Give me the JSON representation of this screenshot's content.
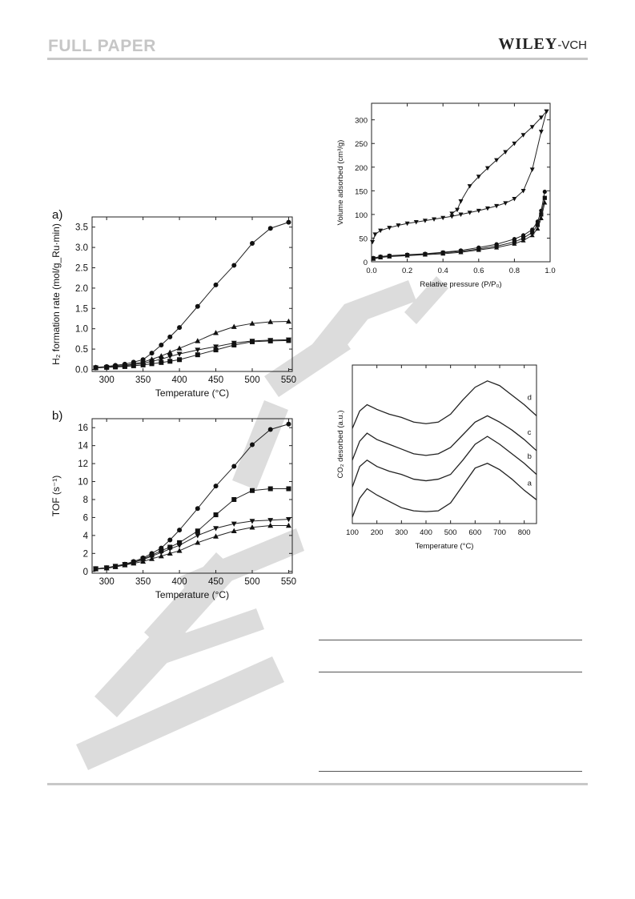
{
  "header": {
    "journal_section": "FULL PAPER",
    "publisher_main": "WILEY",
    "publisher_suffix": "-VCH"
  },
  "watermark": {
    "text": "Wiley-VCH"
  },
  "chart_data": [
    {
      "id": "h2rate",
      "type": "line",
      "panel_label": "a)",
      "xlabel": "Temperature (°C)",
      "ylabel": "H₂ formation rate (mol/g_Ru·min)",
      "xlim": [
        280,
        555
      ],
      "ylim": [
        -0.05,
        3.75
      ],
      "xticks": [
        300,
        350,
        400,
        450,
        500,
        550
      ],
      "yticks": [
        0.0,
        0.5,
        1.0,
        1.5,
        2.0,
        2.5,
        3.0,
        3.5
      ],
      "ytick_labels": [
        "0.0",
        "0.5",
        "1.0",
        "1.5",
        "2.0",
        "2.5",
        "3.0",
        "3.5"
      ],
      "series": [
        {
          "marker": "circle",
          "x": [
            285,
            300,
            312,
            325,
            337,
            350,
            362,
            375,
            387,
            400,
            425,
            450,
            475,
            500,
            525,
            550
          ],
          "y": [
            0.05,
            0.07,
            0.1,
            0.13,
            0.18,
            0.24,
            0.4,
            0.6,
            0.8,
            1.03,
            1.55,
            2.08,
            2.56,
            3.1,
            3.47,
            3.62
          ]
        },
        {
          "marker": "triangle-up",
          "x": [
            285,
            300,
            312,
            325,
            337,
            350,
            362,
            375,
            387,
            400,
            425,
            450,
            475,
            500,
            525,
            550
          ],
          "y": [
            0.05,
            0.06,
            0.08,
            0.1,
            0.14,
            0.18,
            0.25,
            0.33,
            0.42,
            0.52,
            0.7,
            0.9,
            1.05,
            1.13,
            1.17,
            1.18
          ]
        },
        {
          "marker": "triangle-down",
          "x": [
            285,
            300,
            312,
            325,
            337,
            350,
            362,
            375,
            387,
            400,
            425,
            450,
            475,
            500,
            525,
            550
          ],
          "y": [
            0.04,
            0.05,
            0.07,
            0.09,
            0.12,
            0.15,
            0.2,
            0.25,
            0.32,
            0.38,
            0.48,
            0.56,
            0.65,
            0.7,
            0.72,
            0.73
          ]
        },
        {
          "marker": "square",
          "x": [
            285,
            300,
            312,
            325,
            337,
            350,
            362,
            375,
            387,
            400,
            425,
            450,
            475,
            500,
            525,
            550
          ],
          "y": [
            0.04,
            0.05,
            0.06,
            0.07,
            0.09,
            0.11,
            0.14,
            0.17,
            0.2,
            0.24,
            0.36,
            0.48,
            0.6,
            0.68,
            0.7,
            0.71
          ]
        }
      ]
    },
    {
      "id": "tof",
      "type": "line",
      "panel_label": "b)",
      "xlabel": "Temperature (°C)",
      "ylabel": "TOF (s⁻¹)",
      "xlim": [
        280,
        555
      ],
      "ylim": [
        -0.2,
        17
      ],
      "xticks": [
        300,
        350,
        400,
        450,
        500,
        550
      ],
      "yticks": [
        0,
        2,
        4,
        6,
        8,
        10,
        12,
        14,
        16
      ],
      "ytick_labels": [
        "0",
        "2",
        "4",
        "6",
        "8",
        "10",
        "12",
        "14",
        "16"
      ],
      "series": [
        {
          "marker": "circle",
          "x": [
            285,
            300,
            312,
            325,
            337,
            350,
            362,
            375,
            387,
            400,
            425,
            450,
            475,
            500,
            525,
            550
          ],
          "y": [
            0.3,
            0.4,
            0.55,
            0.8,
            1.1,
            1.5,
            2.0,
            2.6,
            3.5,
            4.6,
            7.0,
            9.5,
            11.7,
            14.1,
            15.8,
            16.4
          ]
        },
        {
          "marker": "square",
          "x": [
            285,
            300,
            312,
            325,
            337,
            350,
            362,
            375,
            387,
            400,
            425,
            450,
            475,
            500,
            525,
            550
          ],
          "y": [
            0.3,
            0.4,
            0.55,
            0.75,
            1.0,
            1.4,
            1.8,
            2.3,
            2.7,
            3.2,
            4.5,
            6.3,
            8.0,
            9.0,
            9.2,
            9.2
          ]
        },
        {
          "marker": "triangle-down",
          "x": [
            285,
            300,
            312,
            325,
            337,
            350,
            362,
            375,
            387,
            400,
            425,
            450,
            475,
            500,
            525,
            550
          ],
          "y": [
            0.3,
            0.4,
            0.6,
            0.8,
            1.0,
            1.3,
            1.7,
            2.1,
            2.5,
            2.9,
            4.0,
            4.8,
            5.3,
            5.6,
            5.7,
            5.8
          ]
        },
        {
          "marker": "triangle-up",
          "x": [
            285,
            300,
            312,
            325,
            337,
            350,
            362,
            375,
            387,
            400,
            425,
            450,
            475,
            500,
            525,
            550
          ],
          "y": [
            0.25,
            0.35,
            0.5,
            0.7,
            0.9,
            1.1,
            1.4,
            1.7,
            2.0,
            2.3,
            3.2,
            3.9,
            4.5,
            4.9,
            5.1,
            5.1
          ]
        }
      ]
    },
    {
      "id": "isotherm",
      "type": "line",
      "panel_label": "",
      "xlabel": "Relative pressure (P/P₀)",
      "ylabel": "Volume adsorbed (cm³/g)",
      "xlim": [
        0,
        1.0
      ],
      "ylim": [
        0,
        335
      ],
      "xticks": [
        0.0,
        0.2,
        0.4,
        0.6,
        0.8,
        1.0
      ],
      "xtick_labels": [
        "0.0",
        "0.2",
        "0.4",
        "0.6",
        "0.8",
        "1.0"
      ],
      "yticks": [
        0,
        50,
        100,
        150,
        200,
        250,
        300
      ],
      "ytick_labels": [
        "0",
        "50",
        "100",
        "150",
        "200",
        "250",
        "300"
      ],
      "series": [
        {
          "marker": "triangle-down",
          "x": [
            0.005,
            0.02,
            0.05,
            0.1,
            0.15,
            0.2,
            0.25,
            0.3,
            0.35,
            0.4,
            0.45,
            0.5,
            0.55,
            0.6,
            0.65,
            0.7,
            0.75,
            0.8,
            0.85,
            0.9,
            0.95,
            0.98
          ],
          "y": [
            42,
            58,
            66,
            72,
            77,
            81,
            84,
            87,
            90,
            93,
            96,
            100,
            104,
            108,
            113,
            118,
            124,
            133,
            150,
            195,
            275,
            318
          ]
        },
        {
          "marker": "triangle-down",
          "x": [
            0.98,
            0.95,
            0.9,
            0.85,
            0.8,
            0.75,
            0.7,
            0.65,
            0.6,
            0.55,
            0.5,
            0.48,
            0.45
          ],
          "y": [
            318,
            305,
            285,
            268,
            250,
            232,
            215,
            198,
            180,
            160,
            128,
            110,
            102
          ]
        },
        {
          "marker": "circle",
          "x": [
            0.01,
            0.05,
            0.1,
            0.2,
            0.3,
            0.4,
            0.5,
            0.6,
            0.7,
            0.8,
            0.85,
            0.9,
            0.93,
            0.95,
            0.97
          ],
          "y": [
            8,
            11,
            13,
            15,
            17,
            20,
            24,
            30,
            37,
            48,
            56,
            68,
            85,
            108,
            148
          ]
        },
        {
          "marker": "square",
          "x": [
            0.01,
            0.05,
            0.1,
            0.2,
            0.3,
            0.4,
            0.5,
            0.6,
            0.7,
            0.8,
            0.85,
            0.9,
            0.93,
            0.95,
            0.97
          ],
          "y": [
            7,
            10,
            12,
            14,
            16,
            19,
            22,
            27,
            33,
            42,
            50,
            62,
            78,
            100,
            135
          ]
        },
        {
          "marker": "triangle-up",
          "x": [
            0.01,
            0.05,
            0.1,
            0.2,
            0.3,
            0.4,
            0.5,
            0.6,
            0.7,
            0.8,
            0.85,
            0.9,
            0.93,
            0.95,
            0.97
          ],
          "y": [
            6,
            9,
            11,
            13,
            15,
            17,
            20,
            25,
            30,
            38,
            45,
            56,
            70,
            92,
            125
          ]
        }
      ]
    },
    {
      "id": "co2tpd",
      "type": "line",
      "panel_label": "",
      "xlabel": "Temperature (°C)",
      "ylabel": "CO₂ desorbed (a.u.)",
      "xlim": [
        100,
        850
      ],
      "ylim": [
        0,
        10
      ],
      "xticks": [
        100,
        200,
        300,
        400,
        500,
        600,
        700,
        800
      ],
      "series": [
        {
          "name": "a",
          "x": [
            100,
            130,
            160,
            200,
            250,
            300,
            350,
            400,
            450,
            500,
            550,
            600,
            650,
            700,
            750,
            800,
            850
          ],
          "y": [
            0.4,
            1.6,
            2.2,
            1.8,
            1.4,
            1.0,
            0.8,
            0.75,
            0.8,
            1.3,
            2.4,
            3.5,
            3.8,
            3.4,
            2.8,
            2.1,
            1.5
          ]
        },
        {
          "name": "b",
          "x": [
            100,
            130,
            160,
            200,
            250,
            300,
            350,
            400,
            450,
            500,
            550,
            600,
            650,
            700,
            750,
            800,
            850
          ],
          "y": [
            2.3,
            3.6,
            4.0,
            3.6,
            3.3,
            3.1,
            2.8,
            2.7,
            2.8,
            3.1,
            4.0,
            5.0,
            5.5,
            5.0,
            4.4,
            3.8,
            3.1
          ]
        },
        {
          "name": "c",
          "x": [
            100,
            130,
            160,
            200,
            250,
            300,
            350,
            400,
            450,
            500,
            550,
            600,
            650,
            700,
            750,
            800,
            850
          ],
          "y": [
            4.0,
            5.2,
            5.7,
            5.3,
            5.0,
            4.7,
            4.4,
            4.3,
            4.4,
            4.8,
            5.6,
            6.4,
            6.8,
            6.4,
            5.9,
            5.3,
            4.6
          ]
        },
        {
          "name": "d",
          "x": [
            100,
            130,
            160,
            200,
            250,
            300,
            350,
            400,
            450,
            500,
            550,
            600,
            650,
            700,
            750,
            800,
            850
          ],
          "y": [
            6.0,
            7.1,
            7.5,
            7.2,
            6.9,
            6.7,
            6.4,
            6.3,
            6.4,
            6.9,
            7.8,
            8.6,
            9.0,
            8.7,
            8.1,
            7.5,
            6.8
          ]
        }
      ]
    }
  ]
}
